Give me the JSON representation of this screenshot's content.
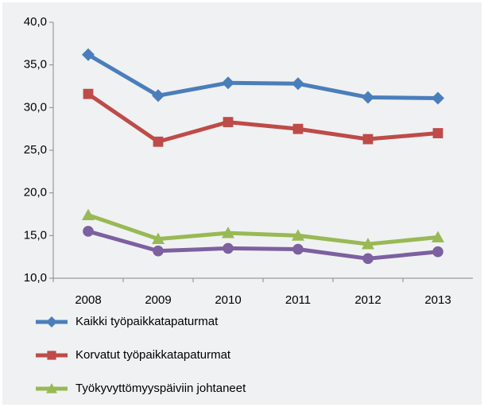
{
  "chart_data": {
    "type": "line",
    "categories": [
      "2008",
      "2009",
      "2010",
      "2011",
      "2012",
      "2013"
    ],
    "series": [
      {
        "name": "Kaikki työpaikkatapaturmat",
        "color": "#4a7ebb",
        "marker": "diamond",
        "values": [
          36.2,
          31.4,
          32.9,
          32.8,
          31.2,
          31.1
        ]
      },
      {
        "name": "Korvatut työpaikkatapaturmat",
        "color": "#be4b48",
        "marker": "square",
        "values": [
          31.6,
          26.0,
          28.3,
          27.5,
          26.3,
          27.0
        ]
      },
      {
        "name": "Työkyvyttömyyspäiviin johtaneet",
        "color": "#98b954",
        "marker": "triangle",
        "values": [
          17.4,
          14.6,
          15.3,
          15.0,
          14.0,
          14.8
        ]
      },
      {
        "color": "#7d60a0",
        "marker": "circle",
        "values": [
          15.5,
          13.2,
          13.5,
          13.4,
          12.3,
          13.1
        ]
      }
    ],
    "ylim": [
      10,
      40
    ],
    "yticks": [
      {
        "value": 10,
        "label": "10,0"
      },
      {
        "value": 15,
        "label": "15,0"
      },
      {
        "value": 20,
        "label": "20,0"
      },
      {
        "value": 25,
        "label": "25,0"
      },
      {
        "value": 30,
        "label": "30,0"
      },
      {
        "value": 35,
        "label": "35,0"
      },
      {
        "value": 40,
        "label": "40,0"
      }
    ],
    "legend": "bottom"
  }
}
